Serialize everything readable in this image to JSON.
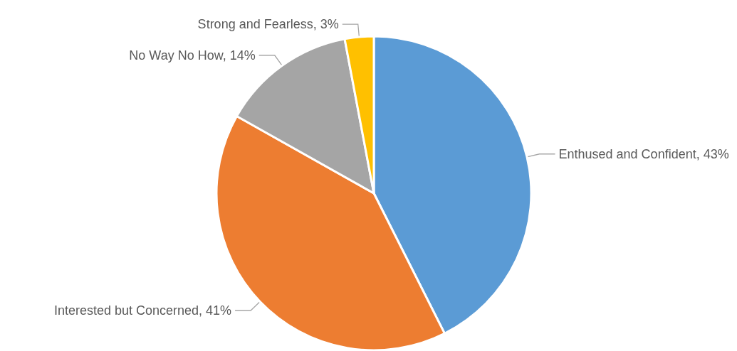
{
  "chart_data": {
    "type": "pie",
    "categories": [
      "Enthused and Confident",
      "Interested but Concerned",
      "No Way No How",
      "Strong and Fearless"
    ],
    "values": [
      43,
      41,
      14,
      3
    ],
    "colors": [
      "#5b9bd5",
      "#ed7d31",
      "#a5a5a5",
      "#ffc000"
    ],
    "value_labels": [
      "43%",
      "41%",
      "14%",
      "3%"
    ]
  }
}
